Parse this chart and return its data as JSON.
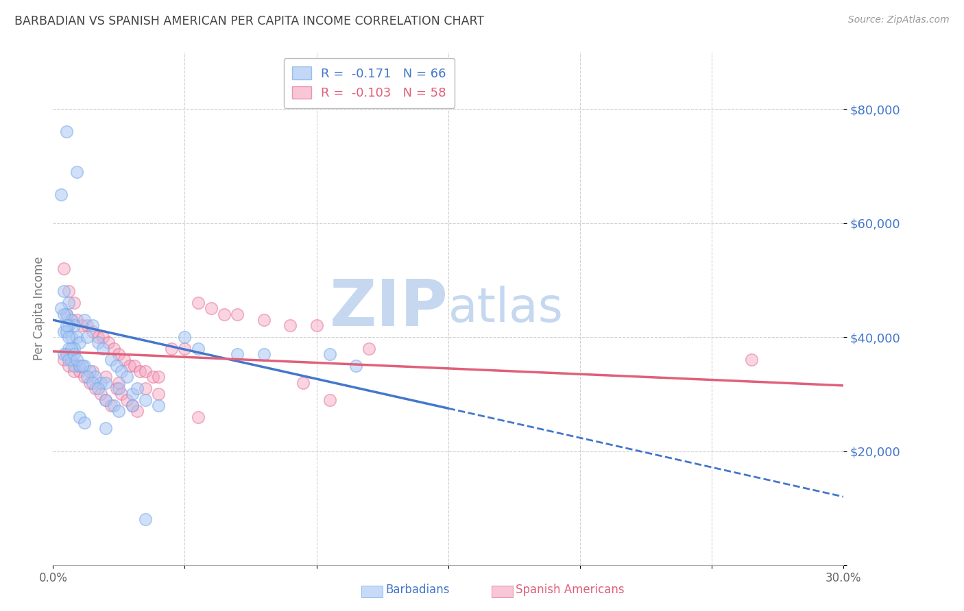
{
  "title": "BARBADIAN VS SPANISH AMERICAN PER CAPITA INCOME CORRELATION CHART",
  "source": "Source: ZipAtlas.com",
  "ylabel": "Per Capita Income",
  "xmin": 0.0,
  "xmax": 30.0,
  "ymin": 0,
  "ymax": 90000,
  "yticks": [
    0,
    20000,
    40000,
    60000,
    80000
  ],
  "ytick_labels": [
    "",
    "$20,000",
    "$40,000",
    "$60,000",
    "$80,000"
  ],
  "blue_R": -0.171,
  "blue_N": 66,
  "pink_R": -0.103,
  "pink_N": 58,
  "blue_color": "#aac8f5",
  "pink_color": "#f5a0bb",
  "blue_edge_color": "#7aaae8",
  "pink_edge_color": "#e06090",
  "blue_line_color": "#4477cc",
  "pink_line_color": "#e0607a",
  "right_label_color": "#4477cc",
  "watermark_color": "#c5d8f0",
  "grid_color": "#d0d0d0",
  "blue_line_x0": 0.0,
  "blue_line_y0": 43000,
  "blue_line_x1": 30.0,
  "blue_line_y1": 12000,
  "blue_solid_end": 15.0,
  "pink_line_x0": 0.0,
  "pink_line_y0": 37500,
  "pink_line_x1": 30.0,
  "pink_line_y1": 31500,
  "blue_scatter_x": [
    0.5,
    0.9,
    0.3,
    0.4,
    0.6,
    0.5,
    0.7,
    0.8,
    0.6,
    0.4,
    0.5,
    0.7,
    0.9,
    1.0,
    0.8,
    0.6,
    0.5,
    0.4,
    0.7,
    0.6,
    0.8,
    1.0,
    1.2,
    1.4,
    1.6,
    1.8,
    2.0,
    2.5,
    3.0,
    3.5,
    4.0,
    1.2,
    1.5,
    1.3,
    1.7,
    1.9,
    2.2,
    2.4,
    2.6,
    2.8,
    3.2,
    0.3,
    0.4,
    0.5,
    0.6,
    0.7,
    0.8,
    0.9,
    1.1,
    1.3,
    1.5,
    1.7,
    2.0,
    2.3,
    5.0,
    5.5,
    7.0,
    8.0,
    10.5,
    11.5,
    3.0,
    2.5,
    1.0,
    1.2,
    2.0,
    3.5
  ],
  "blue_scatter_y": [
    76000,
    69000,
    65000,
    48000,
    46000,
    44000,
    43000,
    42000,
    42000,
    41000,
    41000,
    40000,
    40000,
    39000,
    38000,
    38000,
    37000,
    37000,
    36000,
    36000,
    35000,
    35000,
    35000,
    34000,
    33000,
    32000,
    32000,
    31000,
    30000,
    29000,
    28000,
    43000,
    42000,
    40000,
    39000,
    38000,
    36000,
    35000,
    34000,
    33000,
    31000,
    45000,
    44000,
    42000,
    40000,
    38000,
    37000,
    36000,
    35000,
    33000,
    32000,
    31000,
    29000,
    28000,
    40000,
    38000,
    37000,
    37000,
    37000,
    35000,
    28000,
    27000,
    26000,
    25000,
    24000,
    8000
  ],
  "pink_scatter_x": [
    0.4,
    0.6,
    0.8,
    0.5,
    0.7,
    0.9,
    1.1,
    1.3,
    1.5,
    1.7,
    1.9,
    2.1,
    2.3,
    2.5,
    2.7,
    2.9,
    3.1,
    3.3,
    3.5,
    3.8,
    4.0,
    4.5,
    5.0,
    5.5,
    6.0,
    6.5,
    7.0,
    8.0,
    9.0,
    10.0,
    12.0,
    0.4,
    0.6,
    0.8,
    1.0,
    1.2,
    1.4,
    1.6,
    1.8,
    2.0,
    2.2,
    2.4,
    2.6,
    2.8,
    3.0,
    3.2,
    0.5,
    0.7,
    1.0,
    1.5,
    2.0,
    2.5,
    3.5,
    4.0,
    5.5,
    9.5,
    10.5,
    26.5
  ],
  "pink_scatter_y": [
    52000,
    48000,
    46000,
    44000,
    43000,
    43000,
    42000,
    42000,
    41000,
    40000,
    40000,
    39000,
    38000,
    37000,
    36000,
    35000,
    35000,
    34000,
    34000,
    33000,
    33000,
    38000,
    38000,
    46000,
    45000,
    44000,
    44000,
    43000,
    42000,
    42000,
    38000,
    36000,
    35000,
    34000,
    34000,
    33000,
    32000,
    31000,
    30000,
    29000,
    28000,
    31000,
    30000,
    29000,
    28000,
    27000,
    37000,
    36000,
    35000,
    34000,
    33000,
    32000,
    31000,
    30000,
    26000,
    32000,
    29000,
    36000
  ]
}
